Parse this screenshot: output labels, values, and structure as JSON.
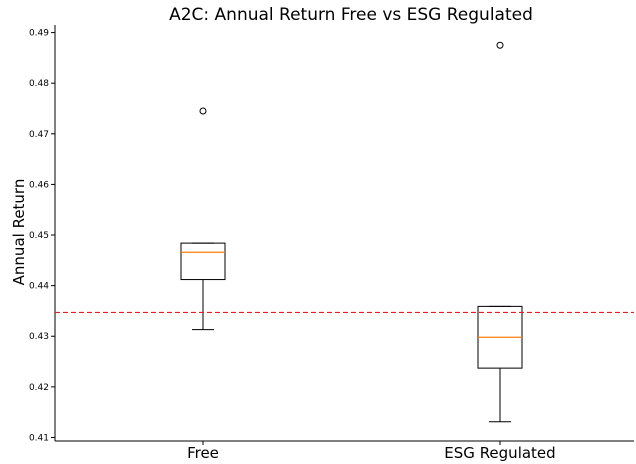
{
  "chart_data": {
    "type": "box",
    "title": "A2C: Annual Return Free vs ESG Regulated",
    "xlabel": "",
    "ylabel": "Annual Return",
    "categories": [
      "Free",
      "ESG Regulated"
    ],
    "ylim": [
      0.4093,
      0.4915
    ],
    "yticks": [
      "0.41",
      "0.42",
      "0.43",
      "0.44",
      "0.45",
      "0.46",
      "0.47",
      "0.48",
      "0.49"
    ],
    "grid": false,
    "boxes": [
      {
        "whisker_low": 0.4313,
        "q1": 0.4412,
        "median": 0.4466,
        "q3": 0.4484,
        "whisker_high": 0.4484,
        "outliers": [
          0.4745
        ]
      },
      {
        "whisker_low": 0.4131,
        "q1": 0.4237,
        "median": 0.4298,
        "q3": 0.4359,
        "whisker_high": 0.4359,
        "outliers": [
          0.4875
        ]
      }
    ],
    "reference_line": {
      "y": 0.4347,
      "color": "#d62728",
      "style": "dashed"
    },
    "colors": {
      "box": "#000000",
      "median": "#ff7f0e",
      "reference": "#d62728"
    }
  }
}
